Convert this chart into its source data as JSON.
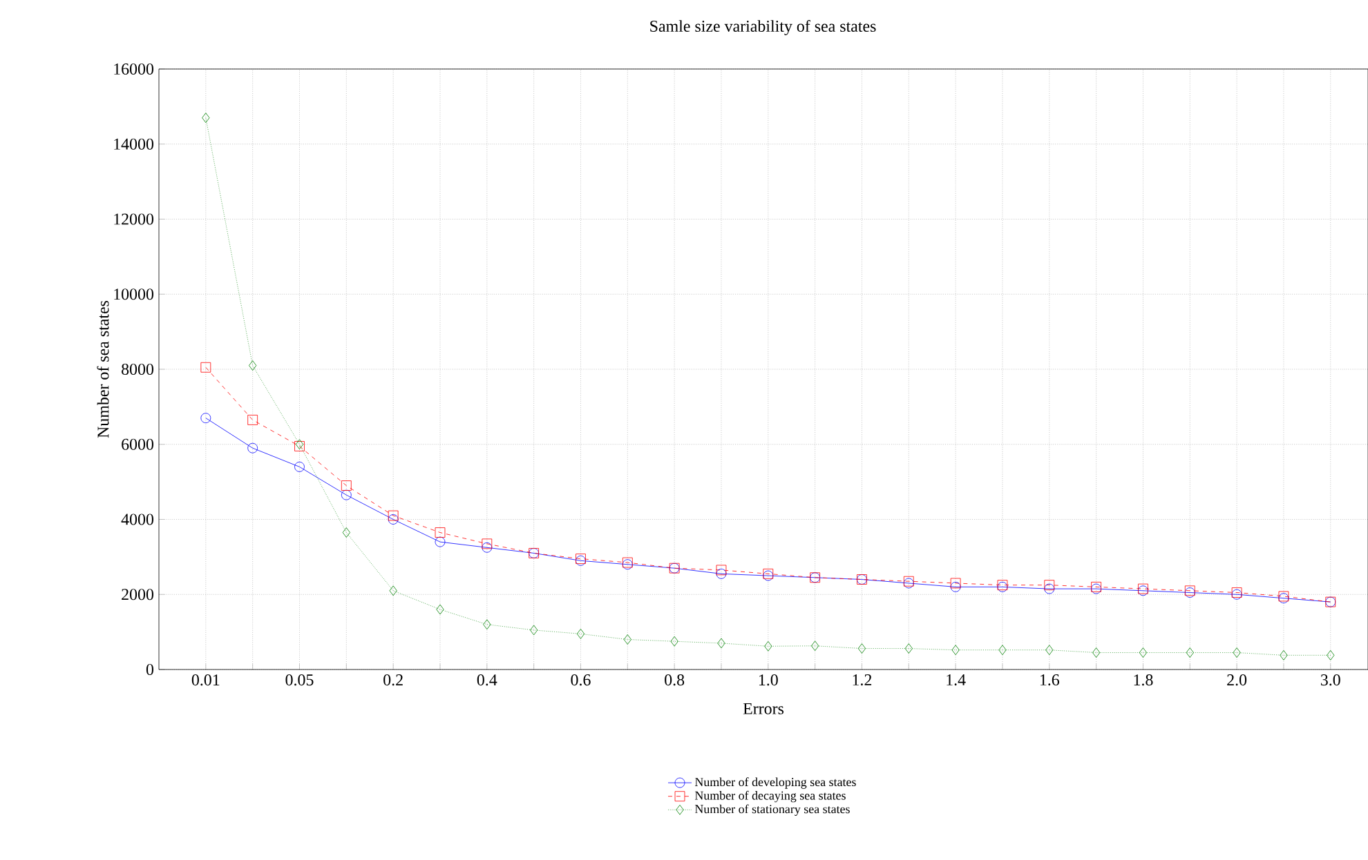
{
  "chart_data": {
    "type": "line",
    "title": "Samle size variability of sea states",
    "xlabel": "Errors",
    "ylabel": "Number of sea states",
    "categories": [
      "0.01",
      null,
      "0.05",
      null,
      "0.2",
      null,
      "0.4",
      null,
      "0.6",
      null,
      "0.8",
      null,
      "1.0",
      null,
      "1.2",
      null,
      "1.4",
      null,
      "1.6",
      null,
      "1.8",
      null,
      "2.0",
      null,
      "3.0"
    ],
    "series": [
      {
        "name": "Number of developing sea states",
        "color": "#0000ff",
        "marker": "circle",
        "line_style": "solid",
        "values": [
          6700,
          5900,
          5400,
          4650,
          4000,
          3400,
          3250,
          3100,
          2900,
          2800,
          2700,
          2550,
          2500,
          2450,
          2400,
          2300,
          2200,
          2200,
          2150,
          2150,
          2100,
          2050,
          2000,
          1900,
          1800
        ]
      },
      {
        "name": "Number of decaying sea states",
        "color": "#ff0000",
        "marker": "square",
        "line_style": "dashed",
        "values": [
          8050,
          6650,
          5950,
          4900,
          4100,
          3650,
          3350,
          3100,
          2950,
          2850,
          2700,
          2650,
          2550,
          2450,
          2400,
          2350,
          2300,
          2250,
          2250,
          2200,
          2150,
          2100,
          2050,
          1950,
          1800
        ]
      },
      {
        "name": "Number of stationary sea states",
        "color": "#008000",
        "marker": "diamond",
        "line_style": "dotted",
        "values": [
          14700,
          8100,
          6000,
          3650,
          2100,
          1600,
          1200,
          1050,
          950,
          800,
          750,
          700,
          620,
          630,
          560,
          560,
          520,
          520,
          520,
          450,
          450,
          450,
          450,
          380,
          380
        ]
      }
    ],
    "ylim": [
      0,
      16000
    ],
    "yticks": [
      0,
      2000,
      4000,
      6000,
      8000,
      10000,
      12000,
      14000,
      16000
    ],
    "grid": true,
    "legend": "bottom"
  }
}
